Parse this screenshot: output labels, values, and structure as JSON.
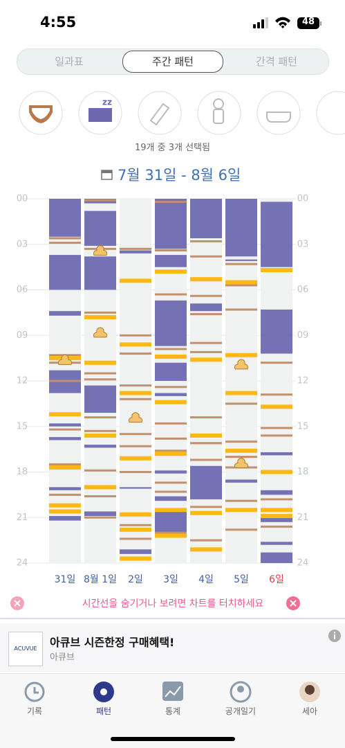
{
  "status": {
    "time": "4:55",
    "battery": "48"
  },
  "tabs": [
    "일과표",
    "주간 패턴",
    "간격 패턴"
  ],
  "selection": "19개 중 3개 선택됨",
  "date_range": "7월 31일 - 8월 6일",
  "pattern": {
    "ylim": [
      0,
      24
    ],
    "yticks": [
      {
        "value": 0,
        "label": "00"
      },
      {
        "value": 3,
        "label": "03"
      },
      {
        "value": 6,
        "label": "06"
      },
      {
        "value": 9,
        "label": "09"
      },
      12,
      15,
      18,
      21,
      24
    ],
    "colors": {
      "sleep": "#7471b5",
      "feed": "#fdb913",
      "diaper": "#c4906c",
      "poop": "#f2c36b"
    },
    "days": [
      {
        "label": "31일",
        "label_color": "#3f5fa8",
        "sleep": [
          [
            0,
            2.5
          ],
          [
            3.7,
            6.0
          ],
          [
            7.4,
            7.7
          ],
          [
            11.3,
            12.8
          ],
          [
            14.8,
            15.0
          ],
          [
            15.7,
            15.9
          ],
          [
            19.0,
            19.2
          ],
          [
            20.9,
            21.2
          ]
        ],
        "feed": [
          10.5,
          14.2,
          17.7,
          20.2,
          20.6
        ],
        "diaper": [
          2.6,
          2.9,
          10.3,
          10.8,
          12.0,
          15.2,
          17.5,
          19.5
        ],
        "poop": [
          10.6
        ]
      },
      {
        "label": "8월 1일",
        "label_color": "#3f5fa8",
        "sleep": [
          [
            0,
            0.3
          ],
          [
            0.8,
            3.1
          ],
          [
            3.8,
            6.0
          ],
          [
            12.3,
            14.1
          ],
          [
            16.2,
            16.4
          ],
          [
            20.6,
            20.9
          ]
        ],
        "feed": [
          7.8,
          10.8,
          15.6,
          19.0
        ],
        "diaper": [
          0.1,
          3.3,
          7.5,
          11.5,
          11.9,
          14.4,
          15.3,
          17.9,
          19.6,
          21.0
        ],
        "poop": [
          3.4,
          8.8
        ]
      },
      {
        "label": "2일",
        "label_color": "#3f5fa8",
        "sleep": [
          [
            3.4,
            3.6
          ],
          [
            19.0,
            19.1
          ],
          [
            23.1,
            23.4
          ]
        ],
        "feed": [
          5.4,
          9.6,
          12.8,
          17.1,
          20.8,
          21.8,
          23.7
        ],
        "diaper": [
          3.3,
          9.0,
          10.2,
          12.3,
          13.2,
          15.5,
          16.3,
          18.0,
          21.5,
          22.4
        ],
        "poop": [
          14.4
        ]
      },
      {
        "label": "3일",
        "label_color": "#3f5fa8",
        "sleep": [
          [
            0,
            3.3
          ],
          [
            3.7,
            4.5
          ],
          [
            6.7,
            9.7
          ],
          [
            10.8,
            12.0
          ],
          [
            12.8,
            13.0
          ],
          [
            17.9,
            18.1
          ],
          [
            19.6,
            19.9
          ],
          [
            20.4,
            22.0
          ]
        ],
        "feed": [
          4.8,
          10.4,
          13.4,
          16.8,
          20.5,
          22.2
        ],
        "diaper": [
          0.2,
          3.4,
          6.3,
          9.9,
          12.4,
          14.8,
          15.8,
          16.6,
          18.7,
          19.3,
          22.0
        ],
        "poop": []
      },
      {
        "label": "4일",
        "label_color": "#3f5fa8",
        "sleep": [
          [
            0,
            2.6
          ],
          [
            6.9,
            7.4
          ],
          [
            17.6,
            19.8
          ]
        ],
        "feed": [
          5.3,
          10.6,
          15.6,
          20.7,
          23.1
        ],
        "diaper": [
          2.8,
          3.8,
          6.4,
          7.6,
          9.5,
          10.1,
          14.4,
          16.1,
          17.2,
          20.3,
          22.5
        ],
        "poop": []
      },
      {
        "label": "5일",
        "label_color": "#3f5fa8",
        "sleep": [
          [
            0,
            3.8
          ],
          [
            4.0,
            4.1
          ],
          [
            18.5,
            18.7
          ]
        ],
        "feed": [
          5.5,
          10.3,
          12.8,
          16.6,
          20.5
        ],
        "diaper": [
          4.3,
          5.7,
          7.3,
          13.5,
          16.0,
          17.0,
          17.7,
          19.9,
          21.8
        ],
        "poop": [
          10.9,
          17.4
        ]
      },
      {
        "label": "6일",
        "label_color": "#e03c3c",
        "sleep": [
          [
            0.2,
            4.5
          ],
          [
            7.3,
            10.2
          ],
          [
            16.7,
            16.9
          ],
          [
            19.2,
            19.5
          ],
          [
            21.0,
            21.3
          ],
          [
            22.6,
            22.8
          ],
          [
            23.3,
            24
          ]
        ],
        "feed": [
          4.7,
          13.7,
          18.0,
          20.5,
          20.9
        ],
        "diaper": [
          10.8,
          12.9,
          15.1,
          15.6,
          19.8,
          21.6
        ],
        "poop": []
      }
    ]
  },
  "notice": "시간선을 숨기거나 보려면 차트를 터치하세요",
  "ad": {
    "logo": "ACUVUE",
    "title": "아큐브 시즌한정 구매혜택!",
    "brand": "아큐브"
  },
  "nav": [
    "기록",
    "패턴",
    "통계",
    "공개일기",
    "세아"
  ]
}
